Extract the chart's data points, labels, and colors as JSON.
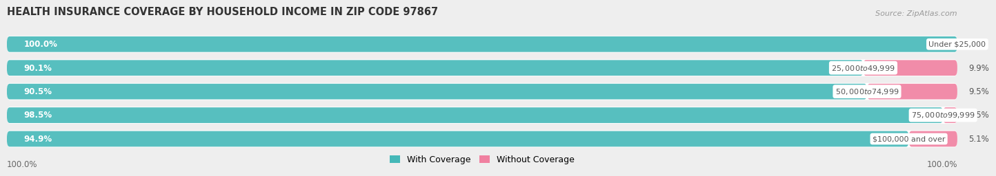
{
  "title": "HEALTH INSURANCE COVERAGE BY HOUSEHOLD INCOME IN ZIP CODE 97867",
  "source": "Source: ZipAtlas.com",
  "categories": [
    "Under $25,000",
    "$25,000 to $49,999",
    "$50,000 to $74,999",
    "$75,000 to $99,999",
    "$100,000 and over"
  ],
  "with_coverage": [
    100.0,
    90.1,
    90.5,
    98.5,
    94.9
  ],
  "without_coverage": [
    0.0,
    9.9,
    9.5,
    1.5,
    5.1
  ],
  "color_with": "#45b8b8",
  "color_without": "#f080a0",
  "bg_color": "#eeeeee",
  "bar_bg_color": "#ffffff",
  "title_fontsize": 10.5,
  "label_fontsize": 8.5,
  "tick_fontsize": 8.5,
  "source_fontsize": 8,
  "legend_fontsize": 9,
  "bottom_labels": [
    "100.0%",
    "100.0%"
  ]
}
